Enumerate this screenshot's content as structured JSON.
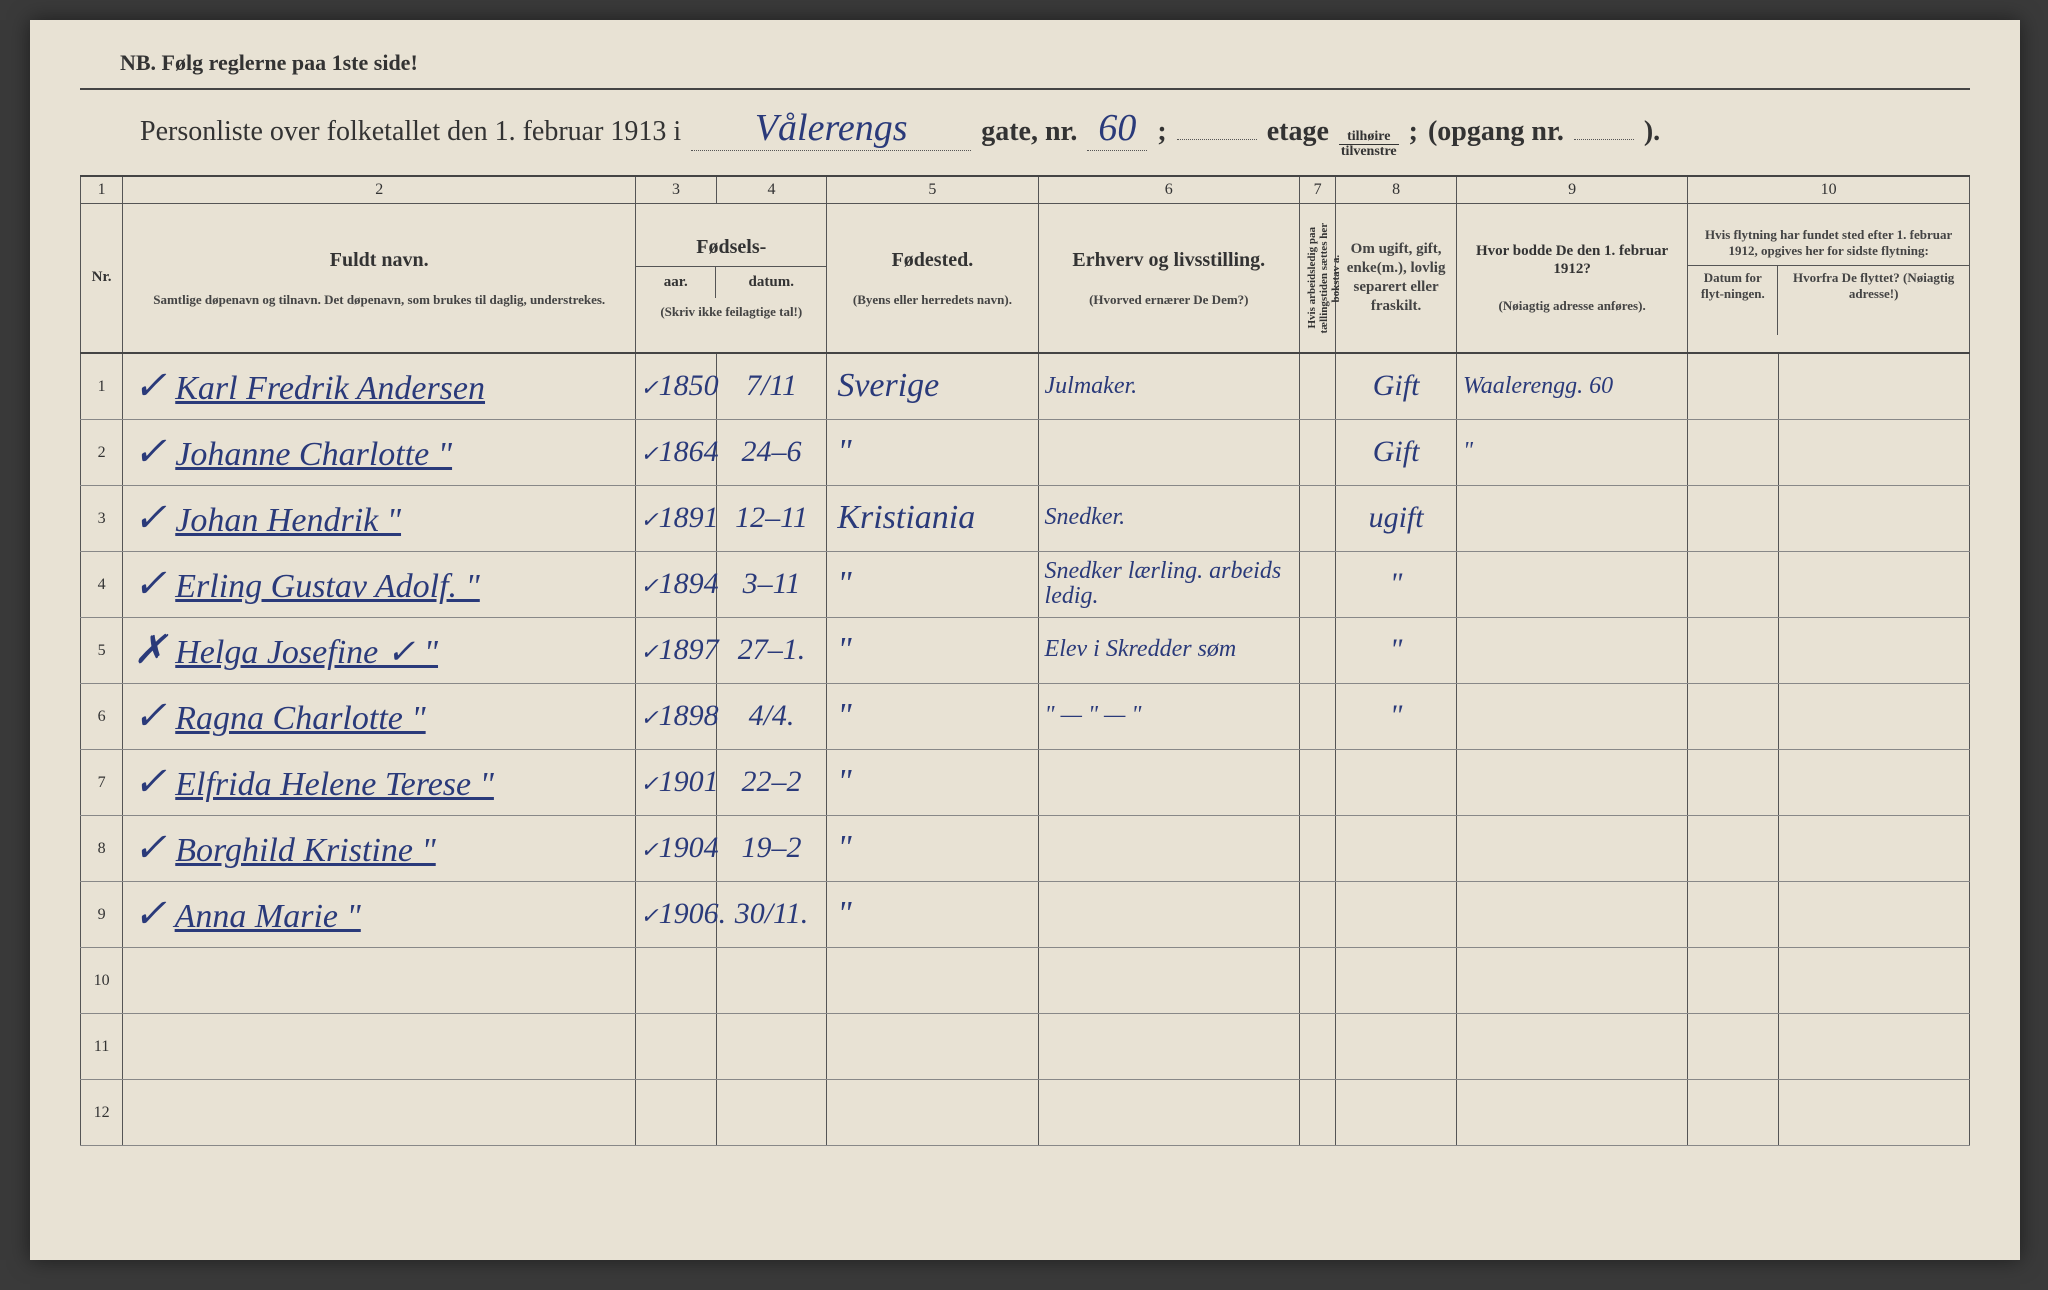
{
  "header": {
    "nb": "NB.   Følg reglerne paa 1ste side!",
    "title_prefix": "Personliste over folketallet den 1. februar 1913 i",
    "street_hw": "Vålerengs",
    "gate_label": "gate, nr.",
    "nr_hw": "60",
    "semicolon": ";",
    "etage_label": "etage",
    "fraction_top": "tilhøire",
    "fraction_bot": "tilvenstre",
    "opgang": "(opgang nr.",
    "opgang_close": ")."
  },
  "colnums": {
    "c1": "1",
    "c2": "2",
    "c3": "3",
    "c4": "4",
    "c5": "5",
    "c6": "6",
    "c7": "7",
    "c8": "8",
    "c9": "9",
    "c10": "10"
  },
  "headers": {
    "nr": "Nr.",
    "name_big": "Fuldt navn.",
    "name_sub": "Samtlige døpenavn og tilnavn.  Det døpenavn, som brukes til daglig, understrekes.",
    "fodsels": "Fødsels-",
    "aar": "aar.",
    "datum": "datum.",
    "aar_sub": "(Skriv ikke feilagtige tal!)",
    "fodested": "Fødested.",
    "fodested_sub": "(Byens eller herredets navn).",
    "erhverv": "Erhverv og livsstilling.",
    "erhverv_sub": "(Hvorved ernærer De Dem?)",
    "col7_vert": "Hvis arbeidsledig paa tællingstiden sættes her bokstav a.",
    "civil": "Om ugift, gift, enke(m.), lovlig separert eller fraskilt.",
    "bodde": "Hvor bodde De den 1. februar 1912?",
    "bodde_sub": "(Nøiagtig adresse anføres).",
    "flyt_top": "Hvis flytning har fundet sted efter 1. februar 1912, opgives her for sidste flytning:",
    "flyt_dat": "Datum for flyt-ningen.",
    "flyt_fra": "Hvorfra De flyttet? (Nøiagtig adresse!)"
  },
  "rows": [
    {
      "n": "1",
      "chk": "✓",
      "name": "Karl Fredrik Andersen",
      "aar": "1850",
      "dat": "7/11",
      "fsted": "Sverige",
      "erh": "Julmaker.",
      "civ": "Gift",
      "b1912": "Waalerengg. 60"
    },
    {
      "n": "2",
      "chk": "✓",
      "name": "Johanne Charlotte   \"",
      "aar": "1864",
      "dat": "24–6",
      "fsted": "\"",
      "erh": "",
      "civ": "Gift",
      "b1912": "\""
    },
    {
      "n": "3",
      "chk": "✓",
      "name": "Johan Hendrik   \"",
      "aar": "1891",
      "dat": "12–11",
      "fsted": "Kristiania",
      "erh": "Snedker.",
      "civ": "ugift",
      "b1912": ""
    },
    {
      "n": "4",
      "chk": "✓",
      "name": "Erling Gustav Adolf.  \"",
      "aar": "1894",
      "dat": "3–11",
      "fsted": "\"",
      "erh": "Snedker lærling. arbeids ledig.",
      "civ": "\"",
      "b1912": ""
    },
    {
      "n": "5",
      "chk": "✗",
      "name": "Helga Josefine ✓  \"",
      "aar": "1897",
      "dat": "27–1.",
      "fsted": "\"",
      "erh": "Elev i Skredder søm",
      "civ": "\"",
      "b1912": ""
    },
    {
      "n": "6",
      "chk": "✓",
      "name": "Ragna Charlotte   \"",
      "aar": "1898",
      "dat": "4/4.",
      "fsted": "\"",
      "erh": "\"   —   \"   —   \"",
      "civ": "\"",
      "b1912": ""
    },
    {
      "n": "7",
      "chk": "✓",
      "name": "Elfrida Helene Terese \"",
      "aar": "1901",
      "dat": "22–2",
      "fsted": "\"",
      "erh": "",
      "civ": "",
      "b1912": ""
    },
    {
      "n": "8",
      "chk": "✓",
      "name": "Borghild Kristine  \"",
      "aar": "1904",
      "dat": "19–2",
      "fsted": "\"",
      "erh": "",
      "civ": "",
      "b1912": ""
    },
    {
      "n": "9",
      "chk": "✓",
      "name": "Anna Marie   \"",
      "aar": "1906.",
      "dat": "30/11.",
      "fsted": "\"",
      "erh": "",
      "civ": "",
      "b1912": ""
    },
    {
      "n": "10",
      "chk": "",
      "name": "",
      "aar": "",
      "dat": "",
      "fsted": "",
      "erh": "",
      "civ": "",
      "b1912": ""
    },
    {
      "n": "11",
      "chk": "",
      "name": "",
      "aar": "",
      "dat": "",
      "fsted": "",
      "erh": "",
      "civ": "",
      "b1912": ""
    },
    {
      "n": "12",
      "chk": "",
      "name": "",
      "aar": "",
      "dat": "",
      "fsted": "",
      "erh": "",
      "civ": "",
      "b1912": ""
    }
  ]
}
